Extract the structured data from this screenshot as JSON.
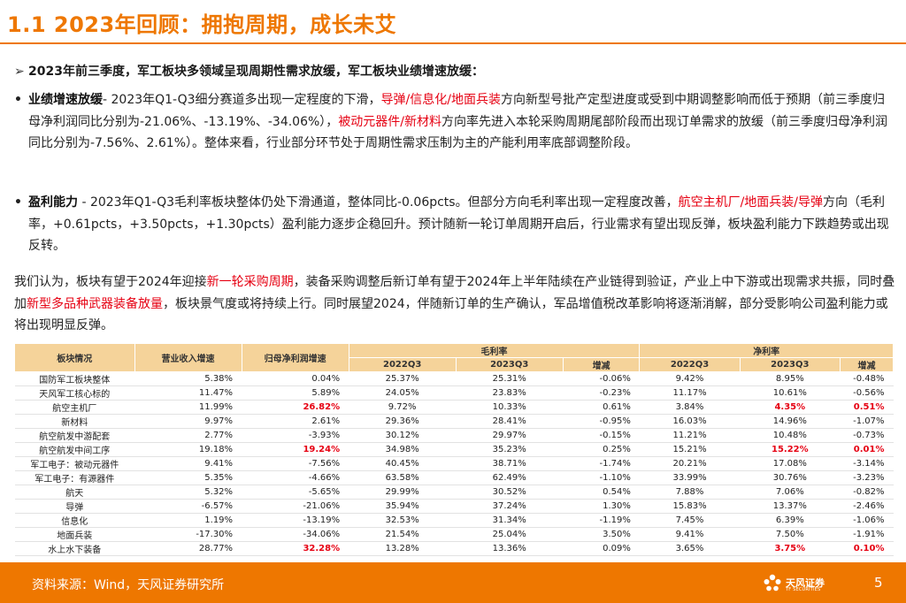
{
  "title": "1.1 2023年回顾：拥抱周期，成长未艾",
  "bullet_head": {
    "arrow": "➢",
    "text": "2023年前三季度，军工板块多领域呈现周期性需求放缓，军工板块业绩增速放缓："
  },
  "item1": {
    "dot": "•",
    "label": "业绩增速放缓",
    "t1": "- 2023年Q1-Q3细分赛道多出现一定程度的下滑，",
    "h1": "导弹/信息化/地面兵装",
    "t2": "方向新型号批产定型进度或受到中期调整影响而低于预期（前三季度归母净利润同比分别为-21.06%、-13.19%、-34.06%），",
    "h2": "被动元器件/新材料",
    "t3": "方向率先进入本轮采购周期尾部阶段而出现订单需求的放缓（前三季度归母净利润同比分别为-7.56%、2.61%）。整体来看，行业部分环节处于周期性需求压制为主的产能利用率底部调整阶段。"
  },
  "item2": {
    "dot": "•",
    "label": "盈利能力",
    "t1": " - 2023年Q1-Q3毛利率板块整体仍处下滑通道，整体同比-0.06pcts。但部分方向毛利率出现一定程度改善，",
    "h1": "航空主机厂/地面兵装/导弹",
    "t2": "方向（毛利率，+0.61pcts，+3.50pcts，+1.30pcts）盈利能力逐步企稳回升。预计随新一轮订单周期开启后，行业需求有望出现反弹，板块盈利能力下跌趋势或出现反转。"
  },
  "para": {
    "t1": "我们认为，板块有望于2024年迎接",
    "h1": "新一轮采购周期",
    "t2": "，装备采购调整后新订单有望于2024年上半年陆续在产业链得到验证，产业上中下游或出现需求共振，同时叠加",
    "h2": "新型多品种武器装备放量",
    "t3": "，板块景气度或将持续上行。同时展望2024，伴随新订单的生产确认，军品增值税改革影响将逐渐消解，部分受影响公司盈利能力或将出现明显反弹。"
  },
  "table": {
    "h_sector": "板块情况",
    "h_revenue": "营业收入增速",
    "h_profit": "归母净利润增速",
    "h_gross": "毛利率",
    "h_net": "净利率",
    "h_2022": "2022Q3",
    "h_2023": "2023Q3",
    "h_change": "增减",
    "rows": [
      {
        "name": "国防军工板块整体",
        "rev": "5.38%",
        "np": "0.04%",
        "g22": "25.37%",
        "g23": "25.31%",
        "gd": "-0.06%",
        "n22": "9.42%",
        "n23": "8.95%",
        "nd": "-0.48%"
      },
      {
        "name": "天风军工核心标的",
        "rev": "11.47%",
        "np": "5.89%",
        "g22": "24.05%",
        "g23": "23.83%",
        "gd": "-0.23%",
        "n22": "11.17%",
        "n23": "10.61%",
        "nd": "-0.56%"
      },
      {
        "name": "航空主机厂",
        "rev": "11.99%",
        "np": "26.82%",
        "g22": "9.72%",
        "g23": "10.33%",
        "gd": "0.61%",
        "n22": "3.84%",
        "n23": "4.35%",
        "nd": "0.51%"
      },
      {
        "name": "新材料",
        "rev": "9.97%",
        "np": "2.61%",
        "g22": "29.36%",
        "g23": "28.41%",
        "gd": "-0.95%",
        "n22": "16.03%",
        "n23": "14.96%",
        "nd": "-1.07%"
      },
      {
        "name": "航空航发中游配套",
        "rev": "2.77%",
        "np": "-3.93%",
        "g22": "30.12%",
        "g23": "29.97%",
        "gd": "-0.15%",
        "n22": "11.21%",
        "n23": "10.48%",
        "nd": "-0.73%"
      },
      {
        "name": "航空航发中间工序",
        "rev": "19.18%",
        "np": "19.24%",
        "g22": "34.98%",
        "g23": "35.23%",
        "gd": "0.25%",
        "n22": "15.21%",
        "n23": "15.22%",
        "nd": "0.01%"
      },
      {
        "name": "军工电子：被动元器件",
        "rev": "9.41%",
        "np": "-7.56%",
        "g22": "40.45%",
        "g23": "38.71%",
        "gd": "-1.74%",
        "n22": "20.21%",
        "n23": "17.08%",
        "nd": "-3.14%"
      },
      {
        "name": "军工电子：有源器件",
        "rev": "5.35%",
        "np": "-4.66%",
        "g22": "63.58%",
        "g23": "62.49%",
        "gd": "-1.10%",
        "n22": "33.99%",
        "n23": "30.76%",
        "nd": "-3.23%"
      },
      {
        "name": "航天",
        "rev": "5.32%",
        "np": "-5.65%",
        "g22": "29.99%",
        "g23": "30.52%",
        "gd": "0.54%",
        "n22": "7.88%",
        "n23": "7.06%",
        "nd": "-0.82%"
      },
      {
        "name": "导弹",
        "rev": "-6.57%",
        "np": "-21.06%",
        "g22": "35.94%",
        "g23": "37.24%",
        "gd": "1.30%",
        "n22": "15.83%",
        "n23": "13.37%",
        "nd": "-2.46%"
      },
      {
        "name": "信息化",
        "rev": "1.19%",
        "np": "-13.19%",
        "g22": "32.53%",
        "g23": "31.34%",
        "gd": "-1.19%",
        "n22": "7.45%",
        "n23": "6.39%",
        "nd": "-1.06%"
      },
      {
        "name": "地面兵装",
        "rev": "-17.30%",
        "np": "-34.06%",
        "g22": "21.54%",
        "g23": "25.04%",
        "gd": "3.50%",
        "n22": "9.41%",
        "n23": "7.50%",
        "nd": "-1.91%"
      },
      {
        "name": "水上水下装备",
        "rev": "28.77%",
        "np": "32.28%",
        "g22": "13.28%",
        "g23": "13.36%",
        "gd": "0.09%",
        "n22": "3.65%",
        "n23": "3.75%",
        "nd": "0.10%"
      }
    ],
    "red_cells": [
      {
        "row": 2,
        "col": "np"
      },
      {
        "row": 2,
        "col": "n23"
      },
      {
        "row": 2,
        "col": "nd"
      },
      {
        "row": 5,
        "col": "np"
      },
      {
        "row": 5,
        "col": "n23"
      },
      {
        "row": 5,
        "col": "nd"
      },
      {
        "row": 12,
        "col": "np"
      },
      {
        "row": 12,
        "col": "n23"
      },
      {
        "row": 12,
        "col": "nd"
      }
    ]
  },
  "footer": {
    "source": "资料来源：Wind，天风证券研究所",
    "logo_name": "天风证券",
    "logo_sub": "TF SECURITIES",
    "page": "5"
  },
  "colors": {
    "accent": "#ee7700",
    "highlight": "#e60012",
    "table_header": "#f5d39a"
  }
}
